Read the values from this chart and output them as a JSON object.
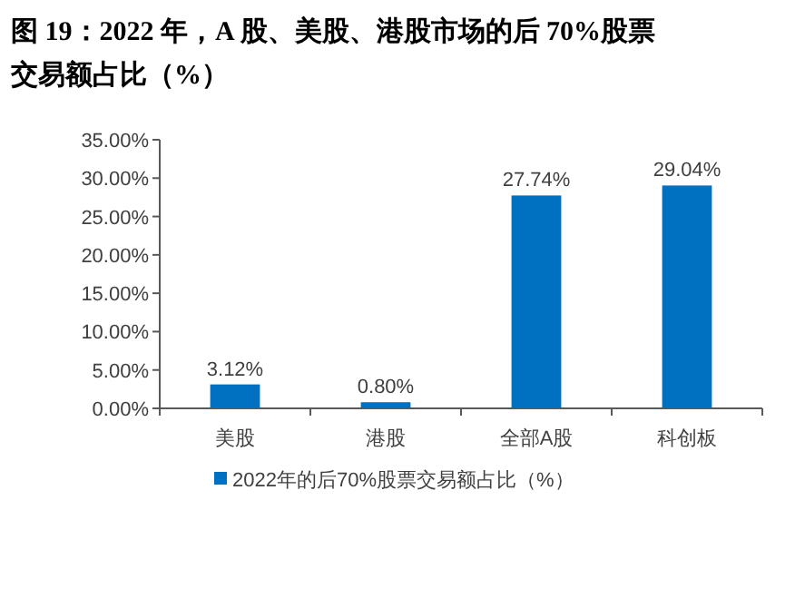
{
  "chart_data": {
    "type": "bar",
    "title": "图 19：2022 年，A 股、美股、港股市场的后 70%股票交易额占比（%）",
    "categories": [
      "美股",
      "港股",
      "全部A股",
      "科创板"
    ],
    "series": [
      {
        "name": "2022年的后70%股票交易额占比（%）",
        "color": "#0070c0",
        "values": [
          3.12,
          0.8,
          27.74,
          29.04
        ],
        "value_labels": [
          "3.12%",
          "0.80%",
          "27.74%",
          "29.04%"
        ]
      }
    ],
    "ylim": [
      0,
      35
    ],
    "yticks": [
      {
        "value": 0,
        "label": "0.00%"
      },
      {
        "value": 5,
        "label": "5.00%"
      },
      {
        "value": 10,
        "label": "10.00%"
      },
      {
        "value": 15,
        "label": "15.00%"
      },
      {
        "value": 20,
        "label": "20.00%"
      },
      {
        "value": 25,
        "label": "25.00%"
      },
      {
        "value": 30,
        "label": "30.00%"
      },
      {
        "value": 35,
        "label": "35.00%"
      }
    ],
    "legend": "bottom"
  }
}
